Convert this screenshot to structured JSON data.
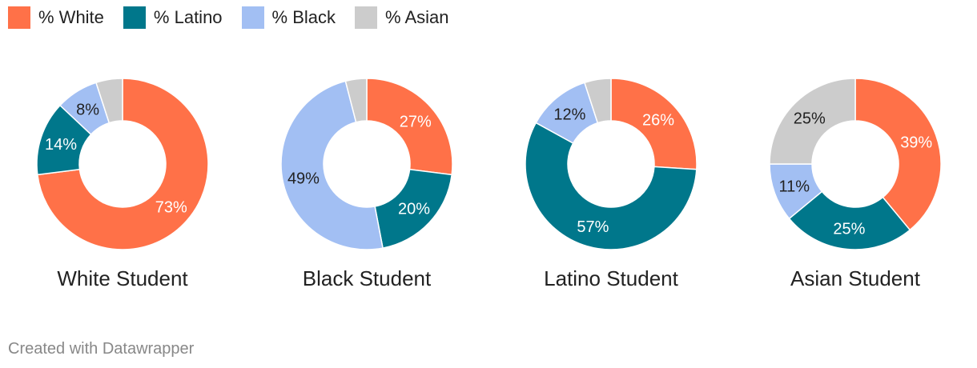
{
  "legend": {
    "items": [
      {
        "label": "% White",
        "color": "#ff7148"
      },
      {
        "label": "% Latino",
        "color": "#00778b"
      },
      {
        "label": "% Black",
        "color": "#a2bff3"
      },
      {
        "label": "% Asian",
        "color": "#cccccc"
      }
    ]
  },
  "chart_data": [
    {
      "type": "pie",
      "title": "White Student",
      "categories": [
        "% White",
        "% Latino",
        "% Black",
        "% Asian"
      ],
      "values": [
        73,
        14,
        8,
        5
      ],
      "labels": [
        "73%",
        "14%",
        "8%",
        ""
      ]
    },
    {
      "type": "pie",
      "title": "Black Student",
      "categories": [
        "% White",
        "% Latino",
        "% Black",
        "% Asian"
      ],
      "values": [
        27,
        20,
        49,
        4
      ],
      "labels": [
        "27%",
        "20%",
        "49%",
        ""
      ]
    },
    {
      "type": "pie",
      "title": "Latino Student",
      "categories": [
        "% White",
        "% Latino",
        "% Black",
        "% Asian"
      ],
      "values": [
        26,
        57,
        12,
        5
      ],
      "labels": [
        "26%",
        "57%",
        "12%",
        ""
      ]
    },
    {
      "type": "pie",
      "title": "Asian Student",
      "categories": [
        "% White",
        "% Latino",
        "% Black",
        "% Asian"
      ],
      "values": [
        39,
        25,
        11,
        25
      ],
      "labels": [
        "39%",
        "25%",
        "11%",
        "25%"
      ]
    }
  ],
  "footer": {
    "credit": "Created with Datawrapper"
  }
}
